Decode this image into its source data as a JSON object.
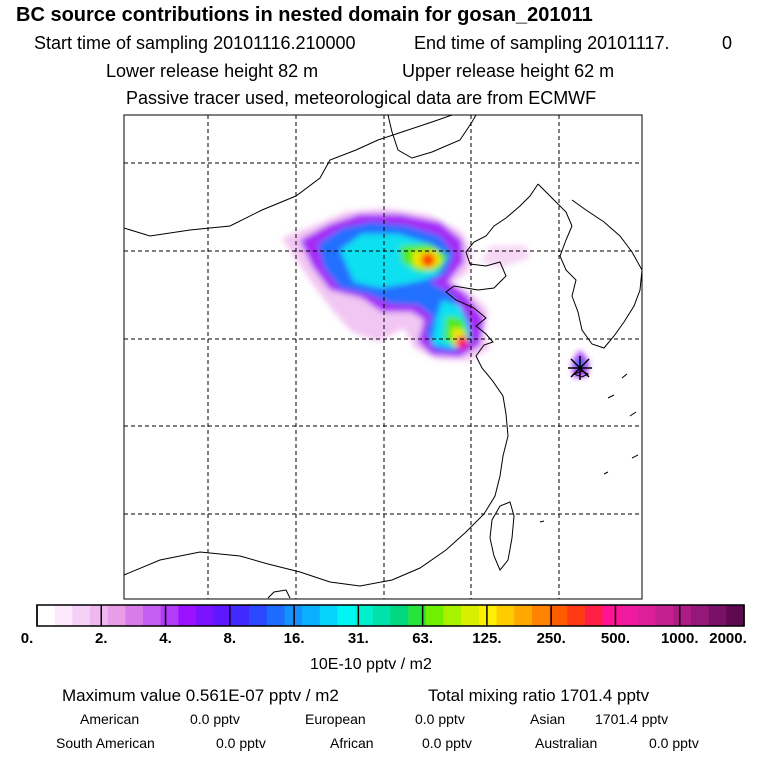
{
  "title": "BC  source contributions in nested domain for gosan_201011",
  "sampling": {
    "start": "Start time of sampling 20101116.210000",
    "end": "End time of sampling 20101117.",
    "end_suffix": "0"
  },
  "release": {
    "lower": "Lower release height   82 m",
    "upper": "Upper release height   62 m"
  },
  "tracer_note": "Passive tracer used, meteorological data are from ECMWF",
  "colorbar": {
    "ticks": [
      "0.",
      "2.",
      "4.",
      "8.",
      "16.",
      "31.",
      "63.",
      "125.",
      "250.",
      "500.",
      "1000.",
      "2000."
    ],
    "colors": [
      "#ffffff",
      "#fbe8fb",
      "#f6d0f6",
      "#f0b8f0",
      "#e79ee7",
      "#d77ce9",
      "#c45ef3",
      "#b23cf8",
      "#9a12ff",
      "#7c13ff",
      "#5f17ff",
      "#4229ff",
      "#2b47ff",
      "#1e6bff",
      "#1490ff",
      "#0aafff",
      "#06d4ff",
      "#00f6f2",
      "#00efcc",
      "#00e2a8",
      "#00d77e",
      "#27e43a",
      "#6ef000",
      "#a8f200",
      "#d8ef00",
      "#ffee00",
      "#ffcc00",
      "#ffa800",
      "#ff8200",
      "#ff5c00",
      "#ff3a14",
      "#ff1e45",
      "#ff1496",
      "#f01aa0",
      "#dc209a",
      "#c4208f",
      "#ac1c84",
      "#941878",
      "#7a1068",
      "#5e0850"
    ],
    "units": "10E-10 pptv / m2"
  },
  "stats": {
    "maximum": "Maximum value  0.561E-07 pptv / m2",
    "total": "Total mixing ratio     1701.4 pptv",
    "american_label": "American",
    "american_value": "0.0 pptv",
    "european_label": "European",
    "european_value": "0.0 pptv",
    "asian_label": "Asian",
    "asian_value": "1701.4 pptv",
    "southamerican_label": "South American",
    "southamerican_value": "0.0 pptv",
    "african_label": "African",
    "african_value": "0.0 pptv",
    "australian_label": "Australian",
    "australian_value": "0.0 pptv"
  },
  "receptor": {
    "name": "gosan"
  }
}
